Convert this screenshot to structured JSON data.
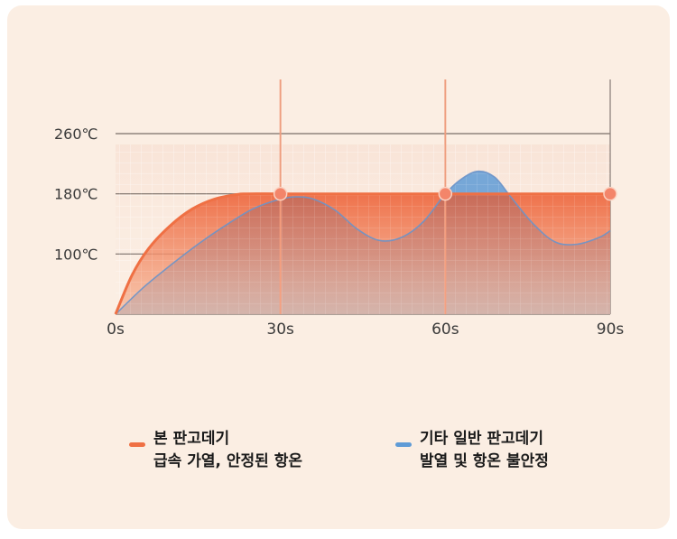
{
  "colors": {
    "primary": "#ef7044",
    "primary_light": "#f7a07e",
    "secondary": "#5f9bd6",
    "axis_text": "#3a3a3a",
    "grid": "#7a6f68",
    "background": "#fbeee3"
  },
  "chart_data": {
    "type": "area",
    "title": "",
    "xlabel": "",
    "ylabel": "",
    "x_ticks": [
      "0s",
      "30s",
      "60s",
      "90s"
    ],
    "x_tick_values": [
      0,
      30,
      60,
      90
    ],
    "y_ticks": [
      "100℃",
      "180℃",
      "260℃"
    ],
    "y_tick_values": [
      100,
      180,
      260
    ],
    "xlim": [
      0,
      90
    ],
    "ylim": [
      20,
      260
    ],
    "grid": true,
    "series": [
      {
        "name": "본 판고데기",
        "x": [
          0,
          3,
          6,
          10,
          14,
          18,
          22,
          24,
          30,
          40,
          50,
          60,
          70,
          80,
          90
        ],
        "y": [
          20,
          72,
          107,
          138,
          160,
          173,
          179,
          180,
          180,
          180,
          180,
          180,
          180,
          180,
          180
        ],
        "markers_x": [
          30,
          60,
          90
        ]
      },
      {
        "name": "기타 일반 판고데기",
        "x": [
          0,
          5,
          10,
          15,
          20,
          25,
          30,
          33,
          36,
          40,
          44,
          48,
          52,
          56,
          60,
          63,
          66,
          69,
          72,
          76,
          80,
          84,
          88,
          90
        ],
        "y": [
          20,
          55,
          85,
          113,
          138,
          160,
          173,
          176,
          173,
          158,
          133,
          118,
          122,
          143,
          180,
          200,
          210,
          202,
          175,
          140,
          116,
          113,
          122,
          131
        ]
      }
    ],
    "legend": [
      {
        "line1": "본 판고데기",
        "line2": "급속 가열, 안정된 항온"
      },
      {
        "line1": "기타 일반 판고데기",
        "line2": "발열 및 항온 불안정"
      }
    ],
    "legend_position": "bottom"
  }
}
